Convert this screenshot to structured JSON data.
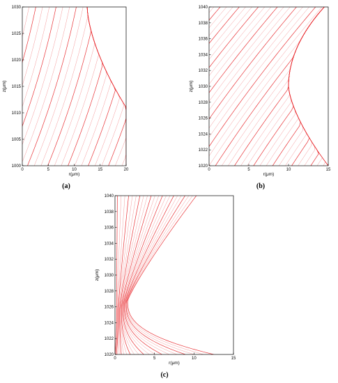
{
  "figure": {
    "panels_description": "Three ray-tracing plots, panels (a), (b), (c)"
  },
  "chart_data": [
    {
      "id": "a",
      "type": "line",
      "panel_label": "(a)",
      "xlabel": "r(μm)",
      "ylabel": "z(μm)",
      "xlim": [
        0,
        20
      ],
      "ylim": [
        1000,
        1030
      ],
      "xticks": [
        "0",
        "5",
        "10",
        "15",
        "20"
      ],
      "yticks": [
        "1000",
        "1005",
        "1010",
        "1015",
        "1020",
        "1025",
        "1030"
      ],
      "grid": false,
      "line_color": "#e8262a",
      "ray_model": {
        "kind": "curved-fan",
        "boundary": {
          "r_at_top": 12.5,
          "r_at_bottom": 20,
          "z_break": 1011
        },
        "num_rays": 34
      }
    },
    {
      "id": "b",
      "type": "line",
      "panel_label": "(b)",
      "xlabel": "r(μm)",
      "ylabel": "z(μm)",
      "xlim": [
        0,
        15
      ],
      "ylim": [
        1020,
        1040
      ],
      "xticks": [
        "0",
        "5",
        "10",
        "15"
      ],
      "yticks": [
        "1020",
        "1022",
        "1024",
        "1026",
        "1028",
        "1030",
        "1032",
        "1034",
        "1036",
        "1038",
        "1040"
      ],
      "grid": false,
      "line_color": "#e8262a",
      "ray_model": {
        "kind": "waist-fan",
        "boundary": {
          "r_at_top": 14.5,
          "r_min": 10,
          "z_min": 1030,
          "r_at_bottom": 15
        },
        "num_rays": 40
      }
    },
    {
      "id": "c",
      "type": "line",
      "panel_label": "(c)",
      "xlabel": "r(μm)",
      "ylabel": "z(μm)",
      "xlim": [
        0,
        15
      ],
      "ylim": [
        1020,
        1040
      ],
      "xticks": [
        "0",
        "5",
        "10",
        "15"
      ],
      "yticks": [
        "1020",
        "1022",
        "1024",
        "1026",
        "1028",
        "1030",
        "1032",
        "1034",
        "1036",
        "1038",
        "1040"
      ],
      "grid": false,
      "line_color": "#e8262a",
      "ray_model": {
        "kind": "focus-fan",
        "boundary": {
          "r_at_top": 10,
          "focus_z": 1026,
          "r_at_bottom": 12.5
        },
        "num_rays": 22
      }
    }
  ]
}
